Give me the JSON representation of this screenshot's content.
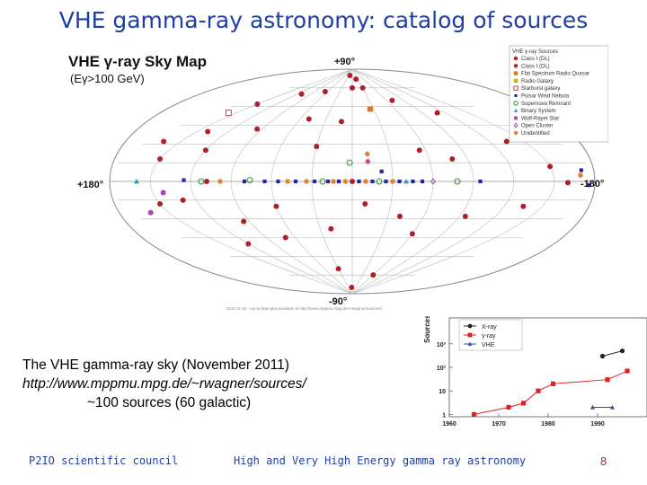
{
  "slide": {
    "title": "VHE gamma-ray astronomy: catalog of sources",
    "caption_line1": "The VHE gamma-ray sky  (November 2011)",
    "caption_line2": "http://www.mppmu.mpg.de/~rwagner/sources/",
    "caption_line3": "~100 sources (60 galactic)",
    "footer_left": "P2IO scientific council",
    "footer_center": "High and Very High Energy gamma ray astronomy",
    "page_number": "8"
  },
  "sky_map": {
    "title": "VHE γ-ray Sky Map",
    "subtitle": "(Eγ>100 GeV)",
    "label_north": "+90°",
    "label_south": "-90°",
    "label_left": "+180°",
    "label_right": "-180°",
    "footer_note": "2011-11-20 - Up-to-date plot available at http://www.mppmu.mpg.de/~rwagner/sources/",
    "legend_header": "VHE γ-ray Sources",
    "legend": [
      {
        "label": "Class I (DL)",
        "icon": "circle",
        "color": "#b01e28"
      },
      {
        "label": "Class I (DL)",
        "icon": "circle",
        "color": "#b01e28"
      },
      {
        "label": "Flat Spectrum Radio Quasar",
        "icon": "square",
        "color": "#e8731c"
      },
      {
        "label": "Radio Galaxy",
        "icon": "square",
        "color": "#c8b400"
      },
      {
        "label": "Starburst galaxy",
        "icon": "open-square",
        "color": "#b05050"
      },
      {
        "label": "Pulsar Wind Nebula",
        "icon": "small-square",
        "color": "#2323a8"
      },
      {
        "label": "Supernova Remnant",
        "icon": "open-circle",
        "color": "#2f8f2f"
      },
      {
        "label": "Binary System",
        "icon": "triangle",
        "color": "#2aa0b0"
      },
      {
        "label": "Wolf-Rayet Star",
        "icon": "circle",
        "color": "#b044b0"
      },
      {
        "label": "Open Cluster",
        "icon": "diamond",
        "color": "#8a55b0"
      },
      {
        "label": "Unidentified",
        "icon": "star",
        "color": "#e07a2a"
      }
    ],
    "sources": [
      {
        "l": 20,
        "b": 85,
        "type": "circle",
        "color": "#b01e28"
      },
      {
        "l": 65,
        "b": 72,
        "type": "circle",
        "color": "#b01e28"
      },
      {
        "l": 110,
        "b": 70,
        "type": "circle",
        "color": "#b01e28"
      },
      {
        "l": 150,
        "b": 62,
        "type": "circle",
        "color": "#b01e28"
      },
      {
        "l": -20,
        "b": 82,
        "type": "circle",
        "color": "#b01e28"
      },
      {
        "l": -30,
        "b": 75,
        "type": "circle",
        "color": "#b01e28"
      },
      {
        "l": -70,
        "b": 65,
        "type": "circle",
        "color": "#b01e28"
      },
      {
        "l": -110,
        "b": 55,
        "type": "circle",
        "color": "#b01e28"
      },
      {
        "l": 0,
        "b": 75,
        "type": "circle",
        "color": "#b01e28"
      },
      {
        "l": 50,
        "b": 50,
        "type": "circle",
        "color": "#b01e28"
      },
      {
        "l": 95,
        "b": 42,
        "type": "circle",
        "color": "#b01e28"
      },
      {
        "l": 140,
        "b": 40,
        "type": "circle",
        "color": "#b01e28"
      },
      {
        "l": 165,
        "b": 32,
        "type": "circle",
        "color": "#b01e28"
      },
      {
        "l": -135,
        "b": 32,
        "type": "circle",
        "color": "#b01e28"
      },
      {
        "l": -25,
        "b": 58,
        "type": "square",
        "color": "#e8731c"
      },
      {
        "l": 12,
        "b": 48,
        "type": "circle",
        "color": "#b01e28"
      },
      {
        "l": 30,
        "b": 28,
        "type": "circle",
        "color": "#b01e28"
      },
      {
        "l": -55,
        "b": 25,
        "type": "circle",
        "color": "#b01e28"
      },
      {
        "l": -78,
        "b": 18,
        "type": "circle",
        "color": "#b01e28"
      },
      {
        "l": 150,
        "b": 18,
        "type": "circle",
        "color": "#b01e28"
      },
      {
        "l": 120,
        "b": 25,
        "type": "circle",
        "color": "#b01e28"
      },
      {
        "l": -150,
        "b": 12,
        "type": "circle",
        "color": "#b01e28"
      },
      {
        "l": 160,
        "b": 55,
        "type": "open-square",
        "color": "#b05050"
      },
      {
        "l": 2,
        "b": 15,
        "type": "open-circle",
        "color": "#2f8f2f"
      },
      {
        "l": -12,
        "b": 22,
        "type": "star",
        "color": "#e07a2a"
      },
      {
        "l": -12,
        "b": 16,
        "type": "star",
        "color": "#d04070"
      },
      {
        "l": -170,
        "b": 5,
        "type": "star",
        "color": "#e07a2a"
      },
      {
        "l": -172,
        "b": 9,
        "type": "small-square",
        "color": "#2323a8"
      },
      {
        "l": -160,
        "b": -1,
        "type": "circle",
        "color": "#b01e28"
      },
      {
        "l": -176,
        "b": -3,
        "type": "small-square",
        "color": "#2323a8"
      },
      {
        "l": 160,
        "b": 0,
        "type": "triangle",
        "color": "#2aa0b0"
      },
      {
        "l": 125,
        "b": 1,
        "type": "small-square",
        "color": "#2323a8"
      },
      {
        "l": 112,
        "b": 0,
        "type": "open-circle",
        "color": "#2f8f2f"
      },
      {
        "l": 108,
        "b": 0,
        "type": "circle",
        "color": "#b01e28"
      },
      {
        "l": 98,
        "b": 0,
        "type": "star",
        "color": "#e07a2a"
      },
      {
        "l": 80,
        "b": 0,
        "type": "small-square",
        "color": "#2323a8"
      },
      {
        "l": 76,
        "b": 1,
        "type": "open-circle",
        "color": "#2f8f2f"
      },
      {
        "l": 65,
        "b": 0,
        "type": "small-square",
        "color": "#2323a8"
      },
      {
        "l": 55,
        "b": 0,
        "type": "small-square",
        "color": "#2323a8"
      },
      {
        "l": 48,
        "b": 0,
        "type": "star",
        "color": "#e07a2a"
      },
      {
        "l": 42,
        "b": 0,
        "type": "small-square",
        "color": "#2323a8"
      },
      {
        "l": 34,
        "b": 0,
        "type": "star",
        "color": "#e07a2a"
      },
      {
        "l": 28,
        "b": 0,
        "type": "small-square",
        "color": "#2323a8"
      },
      {
        "l": 22,
        "b": 0,
        "type": "open-circle",
        "color": "#2f8f2f"
      },
      {
        "l": 18,
        "b": 0,
        "type": "small-square",
        "color": "#2323a8"
      },
      {
        "l": 14,
        "b": 0,
        "type": "star",
        "color": "#e07a2a"
      },
      {
        "l": 10,
        "b": 0,
        "type": "small-square",
        "color": "#2323a8"
      },
      {
        "l": 5,
        "b": 0,
        "type": "star",
        "color": "#e07a2a"
      },
      {
        "l": 0,
        "b": 0,
        "type": "circle",
        "color": "#b01e28"
      },
      {
        "l": -5,
        "b": 0,
        "type": "small-square",
        "color": "#2323a8"
      },
      {
        "l": -10,
        "b": 0,
        "type": "star",
        "color": "#e07a2a"
      },
      {
        "l": -15,
        "b": 0,
        "type": "small-square",
        "color": "#2323a8"
      },
      {
        "l": -20,
        "b": 0,
        "type": "open-circle",
        "color": "#2f8f2f"
      },
      {
        "l": -25,
        "b": 0,
        "type": "small-square",
        "color": "#2323a8"
      },
      {
        "l": -30,
        "b": 0,
        "type": "star",
        "color": "#e07a2a"
      },
      {
        "l": -35,
        "b": 0,
        "type": "small-square",
        "color": "#2323a8"
      },
      {
        "l": -40,
        "b": 0,
        "type": "triangle",
        "color": "#2aa0b0"
      },
      {
        "l": -45,
        "b": 0,
        "type": "small-square",
        "color": "#2323a8"
      },
      {
        "l": -52,
        "b": 0,
        "type": "small-square",
        "color": "#2323a8"
      },
      {
        "l": -60,
        "b": 0,
        "type": "diamond",
        "color": "#8a55b0"
      },
      {
        "l": -78,
        "b": 0,
        "type": "open-circle",
        "color": "#2f8f2f"
      },
      {
        "l": -95,
        "b": 0,
        "type": "small-square",
        "color": "#2323a8"
      },
      {
        "l": -22,
        "b": 8,
        "type": "small-square",
        "color": "#2323a8"
      },
      {
        "l": 142,
        "b": -9,
        "type": "circle",
        "color": "#b044b0"
      },
      {
        "l": 150,
        "b": -18,
        "type": "circle",
        "color": "#b01e28"
      },
      {
        "l": 165,
        "b": -25,
        "type": "circle",
        "color": "#b044b0"
      },
      {
        "l": 130,
        "b": -15,
        "type": "circle",
        "color": "#b01e28"
      },
      {
        "l": 95,
        "b": -32,
        "type": "circle",
        "color": "#b01e28"
      },
      {
        "l": 60,
        "b": -20,
        "type": "circle",
        "color": "#b01e28"
      },
      {
        "l": 70,
        "b": -45,
        "type": "circle",
        "color": "#b01e28"
      },
      {
        "l": 120,
        "b": -50,
        "type": "circle",
        "color": "#b01e28"
      },
      {
        "l": 20,
        "b": -38,
        "type": "circle",
        "color": "#b01e28"
      },
      {
        "l": -10,
        "b": -18,
        "type": "circle",
        "color": "#b01e28"
      },
      {
        "l": -40,
        "b": -28,
        "type": "circle",
        "color": "#b01e28"
      },
      {
        "l": -60,
        "b": -42,
        "type": "circle",
        "color": "#b01e28"
      },
      {
        "l": -95,
        "b": -28,
        "type": "circle",
        "color": "#b01e28"
      },
      {
        "l": -135,
        "b": -20,
        "type": "circle",
        "color": "#b01e28"
      },
      {
        "l": -60,
        "b": -75,
        "type": "circle",
        "color": "#b01e28"
      },
      {
        "l": 30,
        "b": -70,
        "type": "circle",
        "color": "#b01e28"
      },
      {
        "l": 5,
        "b": -85,
        "type": "circle",
        "color": "#b01e28"
      }
    ]
  },
  "growth_chart": {
    "ylabel": "Sources",
    "yticks": [
      "10³",
      "10²",
      "10",
      "1"
    ],
    "xticks": [
      "1960",
      "1970",
      "1980",
      "1990"
    ],
    "legend": [
      {
        "label": "X-ray",
        "color": "#222222",
        "marker": "circle"
      },
      {
        "label": "γ-ray",
        "color": "#dd2222",
        "marker": "square"
      },
      {
        "label": "VHE",
        "color": "#2a4fb0",
        "marker": "triangle"
      }
    ],
    "series": [
      {
        "name": "X-ray",
        "points": [
          [
            1991,
            300
          ],
          [
            1995,
            500
          ]
        ]
      },
      {
        "name": "γ-ray",
        "points": [
          [
            1965,
            1
          ],
          [
            1972,
            2
          ],
          [
            1975,
            3
          ],
          [
            1978,
            10
          ],
          [
            1981,
            20
          ],
          [
            1992,
            30
          ],
          [
            1996,
            70
          ]
        ]
      },
      {
        "name": "VHE",
        "points": [
          [
            1989,
            2
          ],
          [
            1993,
            2
          ]
        ]
      }
    ]
  }
}
